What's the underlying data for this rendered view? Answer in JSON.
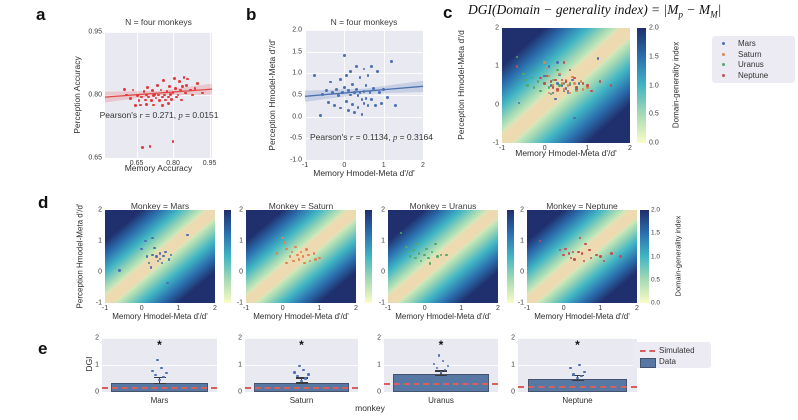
{
  "figure": {
    "panel_labels": {
      "a": "a",
      "b": "b",
      "c": "c",
      "d": "d",
      "e": "e"
    },
    "formula": {
      "p1": "DGI(Domain − generality index) = |M",
      "s1": "p",
      "p2": " − M",
      "s2": "M",
      "p3": "|"
    }
  },
  "colors": {
    "plot_bg": "#e9e9f2",
    "panel_a_points": "#e03b3c",
    "panel_a_line": "#e04b4b",
    "panel_b_points": "#4c72b0",
    "panel_b_line": "#4c72b0",
    "bar_fill": "#5878a4",
    "bar_edge": "#46536e",
    "simulated_line": "#d65f5f",
    "error_bar": "#3b3b3b",
    "strip_points": "#4c72b0",
    "heatmap_scale": [
      "#fbfcc6",
      "#a6dab4",
      "#40b5c4",
      "#2b6fae",
      "#202f6d"
    ],
    "diagonal_band": "#edd9af"
  },
  "monkeys": [
    {
      "name": "Mars",
      "color": "#4c72b0",
      "points": [
        [
          -0.6,
          0.05
        ],
        [
          0.0,
          0.75
        ],
        [
          0.1,
          1.0
        ],
        [
          0.15,
          0.5
        ],
        [
          0.2,
          0.3
        ],
        [
          0.25,
          0.15
        ],
        [
          0.3,
          1.1
        ],
        [
          0.3,
          0.55
        ],
        [
          0.35,
          0.78
        ],
        [
          0.4,
          0.5
        ],
        [
          0.45,
          0.35
        ],
        [
          0.5,
          0.6
        ],
        [
          0.5,
          0.42
        ],
        [
          0.55,
          0.3
        ],
        [
          0.6,
          0.52
        ],
        [
          0.65,
          0.65
        ],
        [
          0.7,
          -0.35
        ],
        [
          0.75,
          0.4
        ],
        [
          0.8,
          0.55
        ],
        [
          1.25,
          1.2
        ]
      ]
    },
    {
      "name": "Saturn",
      "color": "#dd8452",
      "points": [
        [
          -0.15,
          0.6
        ],
        [
          0.0,
          1.1
        ],
        [
          0.05,
          0.95
        ],
        [
          0.1,
          0.75
        ],
        [
          0.1,
          0.3
        ],
        [
          0.2,
          0.5
        ],
        [
          0.25,
          0.65
        ],
        [
          0.3,
          0.35
        ],
        [
          0.35,
          0.8
        ],
        [
          0.4,
          0.55
        ],
        [
          0.45,
          0.4
        ],
        [
          0.5,
          0.65
        ],
        [
          0.55,
          0.5
        ],
        [
          0.6,
          0.3
        ],
        [
          0.65,
          0.72
        ],
        [
          0.7,
          0.55
        ],
        [
          0.75,
          0.35
        ],
        [
          0.85,
          0.6
        ],
        [
          0.9,
          0.4
        ],
        [
          1.0,
          0.45
        ]
      ]
    },
    {
      "name": "Uranus",
      "color": "#55a868",
      "points": [
        [
          -0.65,
          1.25
        ],
        [
          -0.5,
          0.8
        ],
        [
          -0.45,
          0.65
        ],
        [
          -0.4,
          0.5
        ],
        [
          -0.3,
          0.7
        ],
        [
          -0.25,
          0.45
        ],
        [
          -0.2,
          0.9
        ],
        [
          -0.15,
          0.6
        ],
        [
          -0.1,
          0.35
        ],
        [
          0.0,
          0.55
        ],
        [
          0.05,
          0.75
        ],
        [
          0.1,
          0.45
        ],
        [
          0.15,
          0.28
        ],
        [
          0.2,
          0.65
        ],
        [
          0.3,
          0.9
        ],
        [
          0.35,
          0.5
        ],
        [
          0.45,
          0.55
        ],
        [
          0.6,
          0.55
        ]
      ]
    },
    {
      "name": "Neptune",
      "color": "#c44e52",
      "points": [
        [
          -0.65,
          1.0
        ],
        [
          -0.1,
          0.7
        ],
        [
          0.0,
          0.55
        ],
        [
          0.05,
          0.75
        ],
        [
          0.15,
          0.6
        ],
        [
          0.2,
          0.45
        ],
        [
          0.25,
          0.65
        ],
        [
          0.3,
          0.4
        ],
        [
          0.4,
          0.65
        ],
        [
          0.45,
          1.1
        ],
        [
          0.5,
          0.6
        ],
        [
          0.55,
          0.35
        ],
        [
          0.6,
          0.9
        ],
        [
          0.7,
          0.7
        ],
        [
          0.75,
          0.45
        ],
        [
          0.9,
          0.55
        ],
        [
          1.0,
          0.5
        ],
        [
          1.1,
          0.35
        ],
        [
          1.3,
          0.6
        ],
        [
          1.55,
          0.5
        ]
      ]
    }
  ],
  "chart_data": [
    {
      "id": "a",
      "type": "scatter",
      "title": "N = four monkeys",
      "xlabel": "Memory Accuracy",
      "ylabel": "Perception Accuracy",
      "xlim": [
        0.52,
        0.96
      ],
      "ylim": [
        0.65,
        0.95
      ],
      "xticks": [
        0.65,
        0.8,
        0.95
      ],
      "xtick_labels": [
        "0.65",
        "0.80",
        "0.95"
      ],
      "yticks": [
        0.95,
        0.8,
        0.65
      ],
      "ytick_labels": [
        "0.95",
        "0.80",
        "0.65"
      ],
      "annotation": {
        "pre": "Pearson's ",
        "r_var": "r",
        "mid": " = 0.271, ",
        "p_var": "p",
        "post": " = 0.0151"
      },
      "regression": {
        "y_left": 0.795,
        "y_right": 0.814,
        "band_end": 0.013,
        "band_mid": 0.005
      },
      "points": [
        [
          0.6,
          0.814
        ],
        [
          0.61,
          0.8
        ],
        [
          0.625,
          0.792
        ],
        [
          0.635,
          0.812
        ],
        [
          0.645,
          0.775
        ],
        [
          0.655,
          0.798
        ],
        [
          0.66,
          0.786
        ],
        [
          0.665,
          0.776
        ],
        [
          0.67,
          0.795
        ],
        [
          0.675,
          0.675
        ],
        [
          0.68,
          0.808
        ],
        [
          0.685,
          0.788
        ],
        [
          0.69,
          0.8
        ],
        [
          0.69,
          0.778
        ],
        [
          0.695,
          0.818
        ],
        [
          0.7,
          0.795
        ],
        [
          0.705,
          0.677
        ],
        [
          0.71,
          0.787
        ],
        [
          0.715,
          0.81
        ],
        [
          0.72,
          0.798
        ],
        [
          0.72,
          0.776
        ],
        [
          0.725,
          0.801
        ],
        [
          0.73,
          0.793
        ],
        [
          0.735,
          0.822
        ],
        [
          0.74,
          0.8
        ],
        [
          0.745,
          0.786
        ],
        [
          0.75,
          0.812
        ],
        [
          0.755,
          0.795
        ],
        [
          0.755,
          0.775
        ],
        [
          0.76,
          0.835
        ],
        [
          0.765,
          0.8
        ],
        [
          0.77,
          0.788
        ],
        [
          0.775,
          0.808
        ],
        [
          0.78,
          0.795
        ],
        [
          0.78,
          0.78
        ],
        [
          0.785,
          0.82
        ],
        [
          0.79,
          0.801
        ],
        [
          0.795,
          0.79
        ],
        [
          0.8,
          0.806
        ],
        [
          0.8,
          0.69
        ],
        [
          0.805,
          0.84
        ],
        [
          0.81,
          0.815
        ],
        [
          0.815,
          0.795
        ],
        [
          0.82,
          0.8
        ],
        [
          0.825,
          0.832
        ],
        [
          0.83,
          0.812
        ],
        [
          0.835,
          0.788
        ],
        [
          0.84,
          0.82
        ],
        [
          0.845,
          0.842
        ],
        [
          0.85,
          0.805
        ],
        [
          0.855,
          0.822
        ],
        [
          0.86,
          0.838
        ],
        [
          0.87,
          0.812
        ],
        [
          0.88,
          0.8
        ],
        [
          0.89,
          0.815
        ],
        [
          0.9,
          0.828
        ],
        [
          0.92,
          0.805
        ]
      ]
    },
    {
      "id": "b",
      "type": "scatter",
      "title": "N = four monkeys",
      "xlabel": "Memory Hmodel-Meta d'/d'",
      "ylabel": "Perception Hmodel-Meta d'/d'",
      "xlim": [
        -1,
        2
      ],
      "ylim": [
        -1,
        2
      ],
      "xticks": [
        -1,
        0,
        1,
        2
      ],
      "xtick_labels": [
        "-1",
        "0",
        "1",
        "2"
      ],
      "yticks": [
        2,
        1.5,
        1,
        0.5,
        0,
        -0.5,
        -1
      ],
      "ytick_labels": [
        "2.0",
        "1.5",
        "1.0",
        "0.5",
        "0.0",
        "-0.5",
        "-1.0"
      ],
      "annotation": {
        "pre": "Pearson's ",
        "r_var": "r",
        "mid": " = 0.1134, ",
        "p_var": "p",
        "post": " = 0.3164"
      },
      "regression": {
        "y_left": 0.47,
        "y_right": 0.7,
        "band_end": 0.13,
        "band_mid": 0.06
      },
      "points": [
        [
          -0.75,
          0.95
        ],
        [
          -0.6,
          0.02
        ],
        [
          -0.55,
          0.52
        ],
        [
          -0.45,
          0.6
        ],
        [
          -0.4,
          0.32
        ],
        [
          -0.35,
          0.8
        ],
        [
          -0.3,
          0.55
        ],
        [
          -0.25,
          0.25
        ],
        [
          -0.2,
          0.62
        ],
        [
          -0.15,
          0.48
        ],
        [
          -0.1,
          0.85
        ],
        [
          -0.1,
          0.2
        ],
        [
          -0.05,
          0.55
        ],
        [
          0.0,
          1.42
        ],
        [
          0.0,
          0.68
        ],
        [
          0.05,
          0.95
        ],
        [
          0.05,
          0.35
        ],
        [
          0.1,
          0.6
        ],
        [
          0.1,
          0.15
        ],
        [
          0.15,
          1.05
        ],
        [
          0.15,
          0.5
        ],
        [
          0.2,
          0.75
        ],
        [
          0.2,
          0.28
        ],
        [
          0.25,
          0.55
        ],
        [
          0.25,
          0.1
        ],
        [
          0.3,
          1.15
        ],
        [
          0.3,
          0.62
        ],
        [
          0.35,
          0.48
        ],
        [
          0.35,
          0.22
        ],
        [
          0.4,
          0.9
        ],
        [
          0.4,
          0.55
        ],
        [
          0.45,
          0.4
        ],
        [
          0.45,
          0.05
        ],
        [
          0.5,
          1.1
        ],
        [
          0.5,
          0.58
        ],
        [
          0.5,
          0.3
        ],
        [
          0.55,
          0.72
        ],
        [
          0.55,
          0.42
        ],
        [
          0.6,
          0.95
        ],
        [
          0.6,
          0.25
        ],
        [
          0.65,
          0.55
        ],
        [
          0.7,
          1.15
        ],
        [
          0.7,
          0.4
        ],
        [
          0.75,
          0.65
        ],
        [
          0.8,
          0.25
        ],
        [
          0.85,
          1.05
        ],
        [
          0.9,
          0.55
        ],
        [
          0.95,
          0.3
        ],
        [
          1.0,
          0.62
        ],
        [
          1.1,
          0.45
        ],
        [
          1.2,
          1.28
        ],
        [
          1.3,
          0.25
        ]
      ]
    },
    {
      "id": "c",
      "type": "heatmap_scatter",
      "xlabel": "Memory Hmodel-Meta d'/d'",
      "ylabel": "Perception Hmodel-Meta d'/d",
      "xlim": [
        -1,
        2
      ],
      "ylim": [
        -1,
        2
      ],
      "xticks": [
        -1,
        0,
        1,
        2
      ],
      "xtick_labels": [
        "-1",
        "0",
        "1",
        "2"
      ],
      "yticks": [
        2,
        1,
        0,
        -1
      ],
      "ytick_labels": [
        "2",
        "1",
        "0",
        "-1"
      ],
      "colorbar": {
        "label": "Domain-generality index",
        "ticks": [
          "2.0",
          "1.5",
          "1.0",
          "0.5",
          "0.0"
        ],
        "range": [
          0,
          2
        ]
      },
      "legend": [
        "Mars",
        "Saturn",
        "Uranus",
        "Neptune"
      ]
    },
    {
      "id": "d",
      "type": "heatmap_grid",
      "subplot_titles": [
        "Monkey = Mars",
        "Monkey = Saturn",
        "Monkey = Uranus",
        "Monkey = Neptune"
      ],
      "xlabel": "Memory Hmodel-Meta d'/d'",
      "ylabel": "Perception Hmodel-Meta d'/d'",
      "xlim": [
        -1,
        2
      ],
      "ylim": [
        -1,
        2
      ],
      "xticks": [
        -1,
        0,
        1,
        2
      ],
      "xtick_labels": [
        "-1",
        "0",
        "1",
        "2"
      ],
      "yticks": [
        2,
        1,
        0,
        -1
      ],
      "ytick_labels": [
        "2",
        "1",
        "0",
        "-1"
      ],
      "colorbar": {
        "label": "Domain-generality index",
        "ticks": [
          "2.0",
          "1.5",
          "1.0",
          "0.5",
          "0.0"
        ],
        "range": [
          0,
          2
        ]
      }
    },
    {
      "id": "e",
      "type": "bar_grid",
      "ylabel": "DGI",
      "xlabel": "monkey",
      "ylim": [
        0,
        2
      ],
      "yticks": [
        2,
        1,
        0
      ],
      "ytick_labels": [
        "2",
        "1",
        "0"
      ],
      "sig_marker": "*",
      "bars": [
        {
          "name": "Mars",
          "value": 0.32,
          "err": [
            0.32,
            0.53
          ],
          "simulated": 0.17,
          "strip": [
            0.45,
            0.55,
            0.62,
            0.7,
            0.78,
            0.9,
            1.2
          ]
        },
        {
          "name": "Saturn",
          "value": 0.35,
          "err": [
            0.33,
            0.52
          ],
          "simulated": 0.17,
          "strip": [
            0.42,
            0.5,
            0.58,
            0.65,
            0.72,
            0.8,
            0.95
          ]
        },
        {
          "name": "Uranus",
          "value": 0.66,
          "err": [
            0.6,
            0.78
          ],
          "simulated": 0.34,
          "strip": [
            0.72,
            0.8,
            0.88,
            0.95,
            1.05,
            1.15,
            1.35
          ]
        },
        {
          "name": "Neptune",
          "value": 0.47,
          "err": [
            0.42,
            0.6
          ],
          "simulated": 0.23,
          "strip": [
            0.52,
            0.58,
            0.65,
            0.75,
            0.88,
            1.0
          ]
        }
      ],
      "legend": [
        {
          "label": "Simulated",
          "type": "dashed"
        },
        {
          "label": "Data",
          "type": "box"
        }
      ]
    }
  ]
}
